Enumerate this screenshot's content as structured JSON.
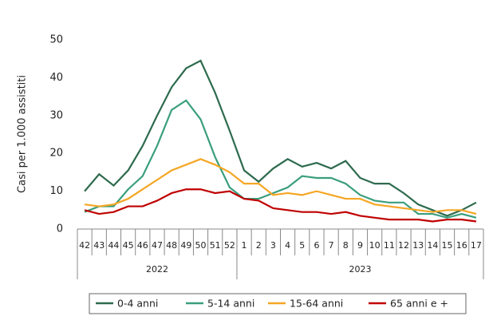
{
  "chart_data": {
    "type": "line",
    "y_label": "Casi per 1.000 assistiti",
    "categories": [
      "42",
      "43",
      "44",
      "45",
      "46",
      "47",
      "48",
      "49",
      "50",
      "51",
      "52",
      "1",
      "2",
      "3",
      "4",
      "5",
      "6",
      "7",
      "8",
      "9",
      "10",
      "11",
      "12",
      "13",
      "14",
      "15",
      "16",
      "17"
    ],
    "x_groups": [
      {
        "label": "2022",
        "count": 11
      },
      {
        "label": "2023",
        "count": 17
      }
    ],
    "series": [
      {
        "name": "0-4 anni",
        "color": "#2e6b4e",
        "values": [
          10,
          14.5,
          11.5,
          15.5,
          22,
          30,
          37.5,
          42.5,
          44.5,
          36,
          26,
          15.5,
          12.5,
          16,
          18.5,
          16.5,
          17.5,
          16,
          18,
          13.5,
          12,
          12,
          9.5,
          6.5,
          5,
          3.5,
          5,
          7
        ]
      },
      {
        "name": "5-14 anni",
        "color": "#3a9e7e",
        "values": [
          4.5,
          6,
          6,
          10.5,
          14,
          22,
          31.5,
          34,
          29,
          19,
          11,
          8,
          8,
          9.5,
          11,
          14,
          13.5,
          13.5,
          12,
          9,
          7.5,
          7,
          7,
          4,
          4,
          3,
          4,
          3
        ]
      },
      {
        "name": "15-64 anni",
        "color": "#f5a623",
        "values": [
          6.5,
          6,
          6.5,
          8,
          10.5,
          13,
          15.5,
          17,
          18.5,
          17,
          15,
          12,
          12,
          9,
          9.5,
          9,
          10,
          9,
          8,
          8,
          6.5,
          6,
          5.5,
          5,
          4.5,
          5,
          5,
          4
        ]
      },
      {
        "name": "65 anni e +",
        "color": "#c00000",
        "values": [
          5,
          4,
          4.5,
          6,
          6,
          7.5,
          9.5,
          10.5,
          10.5,
          9.5,
          10,
          8,
          7.5,
          5.5,
          5,
          4.5,
          4.5,
          4,
          4.5,
          3.5,
          3,
          2.5,
          2.5,
          2.5,
          2,
          2.5,
          2.5,
          2
        ]
      }
    ],
    "ylim": [
      0,
      50
    ],
    "yticks": [
      0,
      10,
      20,
      30,
      40,
      50
    ],
    "grid": false,
    "legend": "bottom"
  }
}
